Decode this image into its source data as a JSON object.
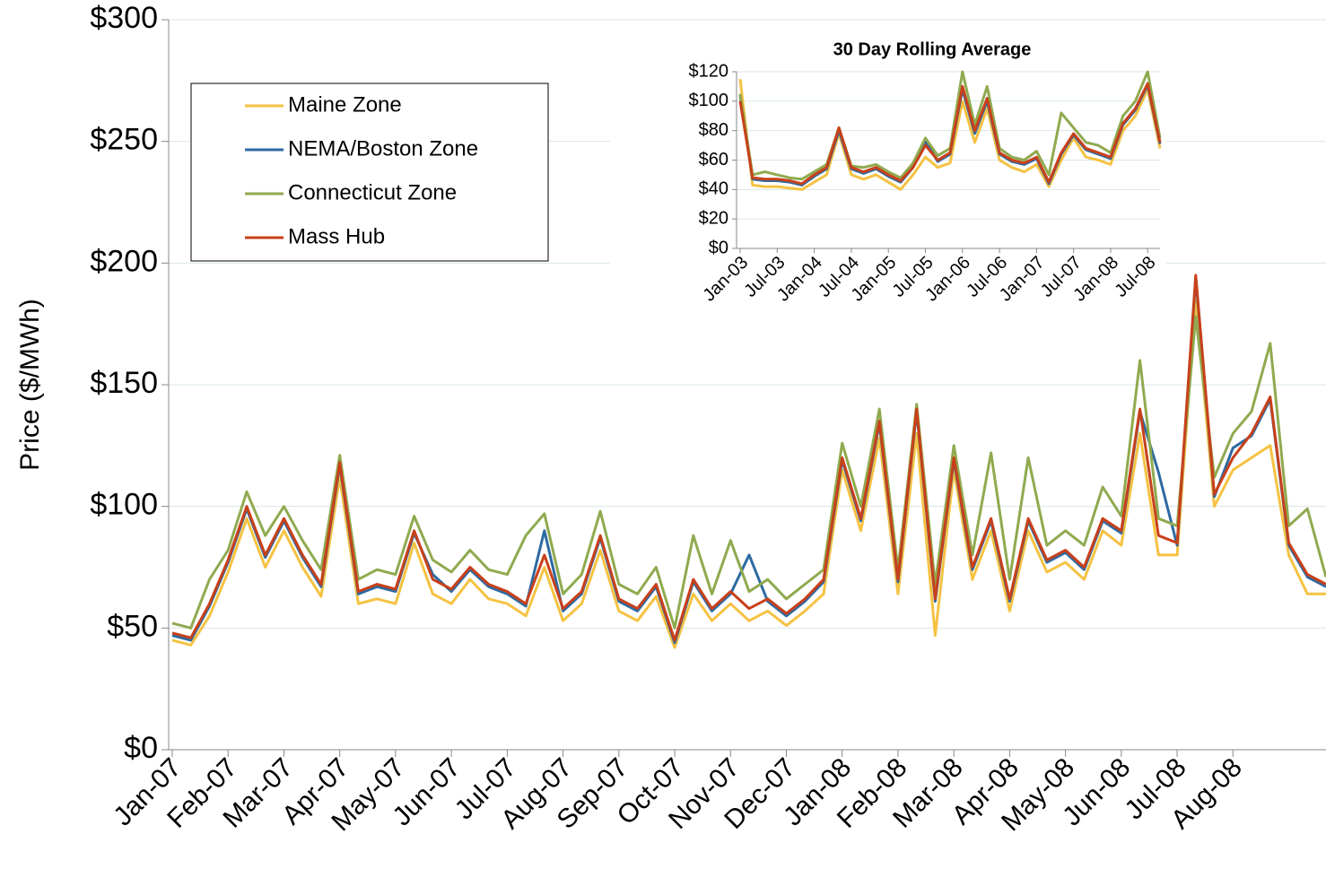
{
  "chart_data": [
    {
      "type": "line",
      "ylabel": "Price ($/MWh)",
      "categories": [
        "Jan-07",
        null,
        null,
        "Feb-07",
        null,
        null,
        "Mar-07",
        null,
        null,
        "Apr-07",
        null,
        null,
        "May-07",
        null,
        null,
        "Jun-07",
        null,
        null,
        "Jul-07",
        null,
        null,
        "Aug-07",
        null,
        null,
        "Sep-07",
        null,
        null,
        "Oct-07",
        null,
        null,
        "Nov-07",
        null,
        null,
        "Dec-07",
        null,
        null,
        "Jan-08",
        null,
        null,
        "Feb-08",
        null,
        null,
        "Mar-08",
        null,
        null,
        "Apr-08",
        null,
        null,
        "May-08",
        null,
        null,
        "Jun-08",
        null,
        null,
        "Jul-08",
        null,
        null,
        "Aug-08",
        null,
        null,
        null,
        null,
        null
      ],
      "ylim": [
        0,
        300
      ],
      "yticks": [
        {
          "value": 0,
          "label": "$0"
        },
        {
          "value": 50,
          "label": "$50"
        },
        {
          "value": 100,
          "label": "$100"
        },
        {
          "value": 150,
          "label": "$150"
        },
        {
          "value": 200,
          "label": "$200"
        },
        {
          "value": 250,
          "label": "$250"
        },
        {
          "value": 300,
          "label": "$300"
        }
      ],
      "grid": true,
      "legend": "upper left",
      "series": [
        {
          "name": "Maine Zone",
          "color": "#f5c242",
          "values": [
            45,
            43,
            55,
            73,
            95,
            75,
            90,
            75,
            63,
            112,
            60,
            62,
            60,
            85,
            64,
            60,
            70,
            62,
            60,
            55,
            75,
            53,
            60,
            82,
            57,
            53,
            63,
            42,
            64,
            53,
            60,
            53,
            57,
            51,
            57,
            64,
            115,
            90,
            128,
            64,
            130,
            47,
            115,
            70,
            90,
            57,
            90,
            73,
            77,
            70,
            90,
            84,
            130,
            80,
            80,
            185,
            100,
            115,
            120,
            125,
            80,
            64,
            64
          ]
        },
        {
          "name": "NEMA/Boston Zone",
          "color": "#2e6aa1",
          "values": [
            47,
            45,
            59,
            77,
            99,
            79,
            94,
            79,
            67,
            117,
            64,
            67,
            65,
            89,
            72,
            65,
            74,
            67,
            64,
            59,
            90,
            57,
            64,
            87,
            61,
            57,
            67,
            44,
            69,
            57,
            64,
            80,
            61,
            55,
            61,
            69,
            119,
            94,
            134,
            69,
            139,
            61,
            119,
            74,
            94,
            61,
            94,
            77,
            81,
            74,
            94,
            89,
            139,
            114,
            84,
            194,
            104,
            124,
            129,
            144,
            84,
            71,
            67
          ]
        },
        {
          "name": "Connecticut Zone",
          "color": "#8faa4f",
          "values": [
            52,
            50,
            70,
            82,
            106,
            88,
            100,
            86,
            74,
            121,
            70,
            74,
            72,
            96,
            78,
            73,
            82,
            74,
            72,
            88,
            97,
            64,
            72,
            98,
            68,
            64,
            75,
            50,
            88,
            64,
            86,
            65,
            70,
            62,
            68,
            74,
            126,
            100,
            140,
            74,
            142,
            68,
            125,
            80,
            122,
            70,
            120,
            84,
            90,
            84,
            108,
            96,
            160,
            95,
            92,
            178,
            112,
            130,
            139,
            167,
            92,
            99,
            71
          ]
        },
        {
          "name": "Mass Hub",
          "color": "#c8401a",
          "values": [
            48,
            46,
            60,
            78,
            100,
            80,
            95,
            80,
            68,
            118,
            65,
            68,
            66,
            90,
            70,
            66,
            75,
            68,
            65,
            60,
            80,
            58,
            65,
            88,
            62,
            58,
            68,
            45,
            70,
            58,
            65,
            58,
            62,
            56,
            62,
            70,
            120,
            95,
            135,
            70,
            140,
            62,
            120,
            75,
            95,
            62,
            95,
            78,
            82,
            75,
            95,
            90,
            140,
            88,
            85,
            195,
            105,
            120,
            130,
            145,
            85,
            72,
            68
          ]
        }
      ]
    },
    {
      "type": "line",
      "title": "30 Day Rolling Average",
      "categories": [
        "Jan-03",
        null,
        null,
        "Jul-03",
        null,
        null,
        "Jan-04",
        null,
        null,
        "Jul-04",
        null,
        null,
        "Jan-05",
        null,
        null,
        "Jul-05",
        null,
        null,
        "Jan-06",
        null,
        null,
        "Jul-06",
        null,
        null,
        "Jan-07",
        null,
        null,
        "Jul-07",
        null,
        null,
        "Jan-08",
        null,
        null,
        "Jul-08",
        null
      ],
      "ylim": [
        0,
        120
      ],
      "yticks": [
        {
          "value": 0,
          "label": "$0"
        },
        {
          "value": 20,
          "label": "$20"
        },
        {
          "value": 40,
          "label": "$40"
        },
        {
          "value": 60,
          "label": "$60"
        },
        {
          "value": 80,
          "label": "$80"
        },
        {
          "value": 100,
          "label": "$100"
        },
        {
          "value": 120,
          "label": "$120"
        }
      ],
      "grid": true,
      "series": [
        {
          "color": "#f5c242",
          "values": [
            115,
            43,
            42,
            42,
            41,
            40,
            45,
            50,
            78,
            50,
            47,
            50,
            45,
            40,
            50,
            62,
            55,
            58,
            100,
            72,
            95,
            60,
            55,
            52,
            57,
            42,
            60,
            75,
            62,
            60,
            57,
            80,
            90,
            108,
            68
          ]
        },
        {
          "color": "#2e6aa1",
          "values": [
            104,
            47,
            46,
            46,
            45,
            43,
            49,
            54,
            80,
            54,
            51,
            54,
            49,
            45,
            55,
            73,
            59,
            64,
            108,
            78,
            100,
            64,
            59,
            57,
            61,
            44,
            64,
            77,
            67,
            64,
            61,
            84,
            94,
            111,
            71
          ]
        },
        {
          "color": "#8faa4f",
          "values": [
            105,
            50,
            52,
            50,
            48,
            47,
            52,
            57,
            82,
            56,
            55,
            57,
            52,
            48,
            58,
            75,
            63,
            68,
            120,
            84,
            110,
            68,
            62,
            60,
            66,
            50,
            92,
            82,
            72,
            70,
            65,
            90,
            100,
            120,
            75
          ]
        },
        {
          "color": "#c8401a",
          "values": [
            100,
            48,
            47,
            47,
            46,
            44,
            50,
            55,
            82,
            55,
            52,
            55,
            50,
            46,
            55,
            70,
            60,
            65,
            110,
            80,
            102,
            65,
            60,
            58,
            62,
            45,
            65,
            78,
            68,
            65,
            62,
            85,
            95,
            112,
            72
          ]
        }
      ]
    }
  ]
}
